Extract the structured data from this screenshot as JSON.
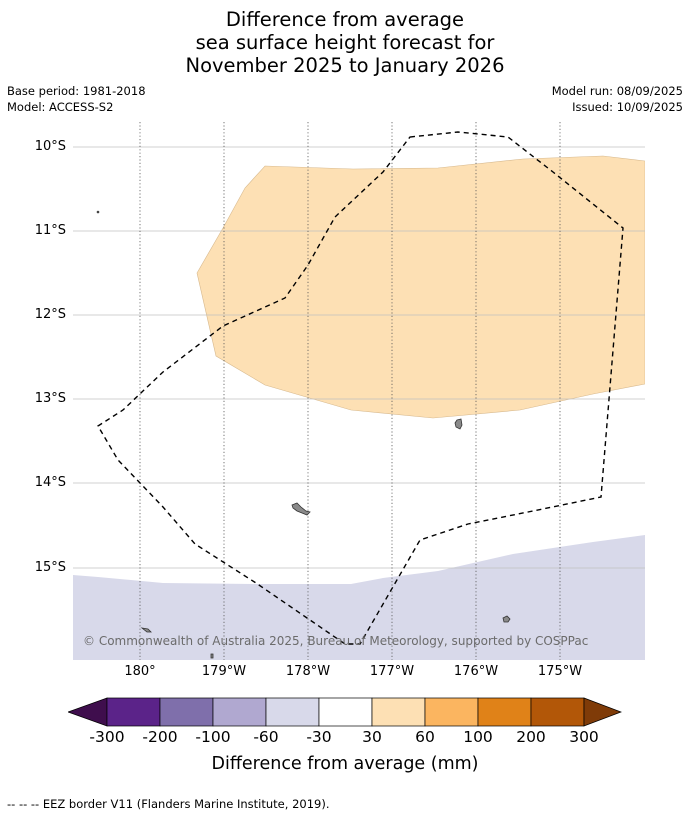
{
  "title": {
    "line1": "Difference from average",
    "line2": "sea surface height forecast for",
    "line3": "November 2025 to January 2026"
  },
  "meta": {
    "base_period": "Base period: 1981-2018",
    "model": "Model: ACCESS-S2",
    "model_run": "Model run: 08/09/2025",
    "issued": "Issued: 10/09/2025"
  },
  "map": {
    "latitude_labels": [
      "10°S",
      "11°S",
      "12°S",
      "13°S",
      "14°S",
      "15°S"
    ],
    "longitude_labels": [
      "180°",
      "179°W",
      "178°W",
      "177°W",
      "176°W",
      "175°W"
    ],
    "copyright": "© Commonwealth of Australia 2025, Bureau of Meteorology, supported by COSPPac",
    "colors": {
      "positive_30_60": "#fde0b4",
      "negative_60_30": "#d8d9ea",
      "land": "#8a8a8a",
      "eez_border": "#000000",
      "graticule": "#c0c0c0"
    }
  },
  "colorbar": {
    "label": "Difference from average (mm)",
    "tick_labels": [
      "-300",
      "-200",
      "-100",
      "-60",
      "-30",
      "30",
      "60",
      "100",
      "200",
      "300"
    ],
    "colors": [
      "#3f0e4d",
      "#5b2389",
      "#7f6fab",
      "#b0a8d0",
      "#d8d9ea",
      "#ffffff",
      "#fde0b4",
      "#fbb560",
      "#e08218",
      "#b25708",
      "#7f3b08"
    ]
  },
  "footnote": "-- -- -- EEZ border V11 (Flanders Marine Institute, 2019)."
}
